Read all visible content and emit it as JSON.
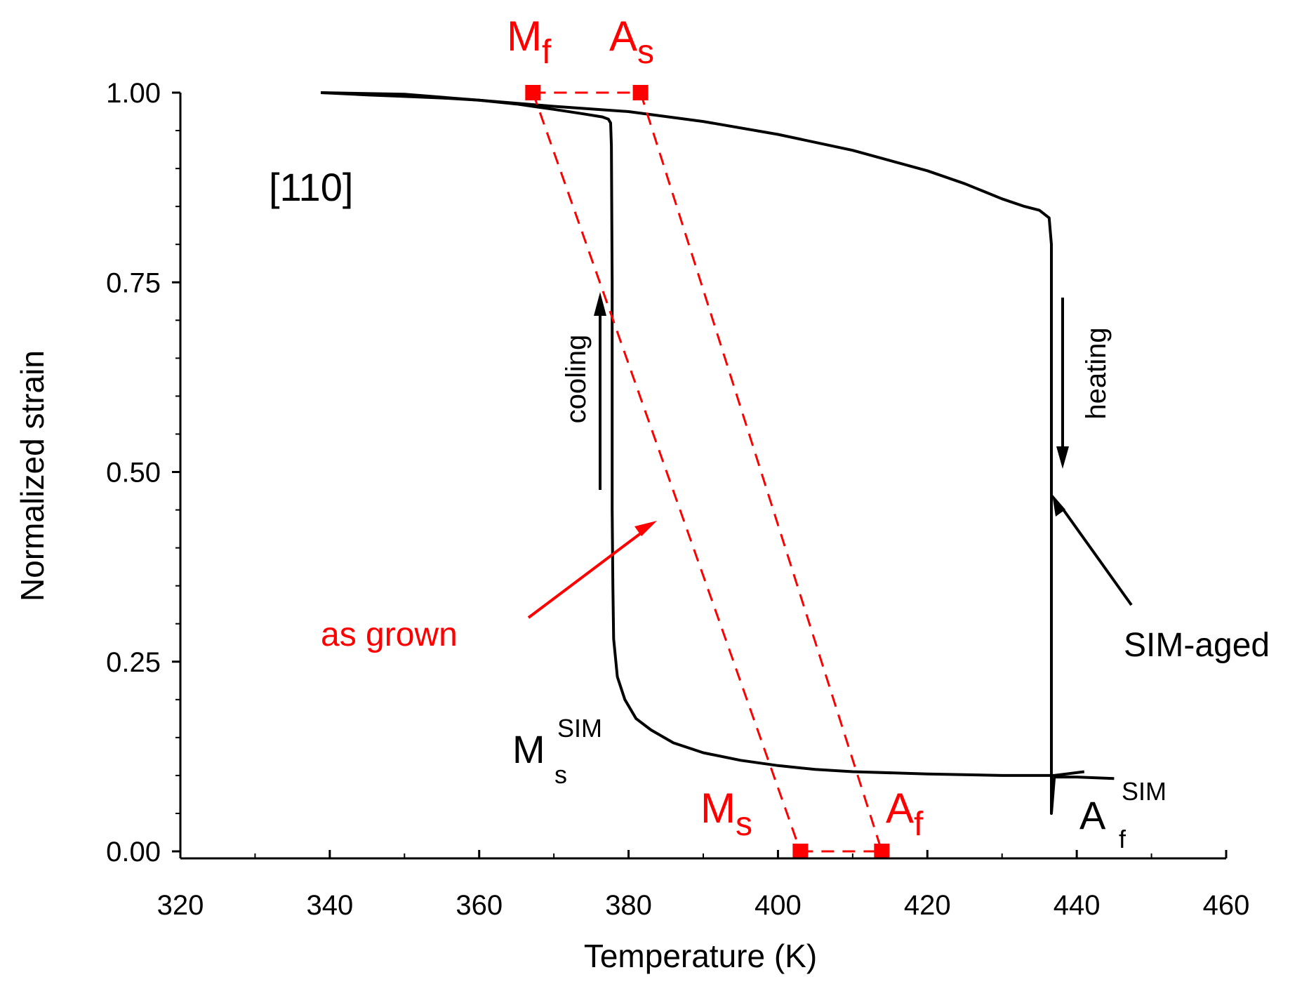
{
  "chart_data": {
    "type": "line",
    "xlabel": "Temperature (K)",
    "ylabel": "Normalized strain",
    "xlim": [
      320,
      460
    ],
    "ylim": [
      0,
      1
    ],
    "x_ticks": [
      "320",
      "340",
      "360",
      "380",
      "400",
      "420",
      "440",
      "460"
    ],
    "y_ticks": [
      "0.00",
      "0.25",
      "0.50",
      "0.75",
      "1.00"
    ],
    "x_tick_values": [
      320,
      340,
      360,
      380,
      400,
      420,
      440,
      460
    ],
    "y_tick_values": [
      0,
      0.25,
      0.5,
      0.75,
      1.0
    ],
    "grid": false,
    "series": [
      {
        "name": "SIM-aged cooling",
        "color": "#000000",
        "style": "solid",
        "x": [
          338.8,
          345,
          350,
          355,
          360,
          365,
          370,
          374,
          376.5,
          377.3,
          377.6,
          377.7,
          377.8,
          377.8,
          377.8,
          377.9,
          378,
          378.5,
          379.5,
          381,
          383,
          386,
          390,
          395,
          400,
          405,
          410,
          420,
          430,
          437,
          441
        ],
        "y": [
          1.0,
          0.997,
          0.995,
          0.993,
          0.99,
          0.985,
          0.978,
          0.972,
          0.968,
          0.965,
          0.96,
          0.93,
          0.75,
          0.6,
          0.45,
          0.35,
          0.28,
          0.23,
          0.2,
          0.175,
          0.16,
          0.143,
          0.13,
          0.12,
          0.113,
          0.108,
          0.105,
          0.102,
          0.1,
          0.1,
          0.105
        ]
      },
      {
        "name": "SIM-aged heating",
        "color": "#000000",
        "style": "solid",
        "x": [
          338.8,
          350,
          360,
          370,
          380,
          390,
          400,
          410,
          420,
          425,
          430,
          433,
          435,
          436.3,
          436.6,
          436.6,
          436.6,
          436.6,
          436.6,
          437,
          440,
          445
        ],
        "y": [
          1.0,
          0.998,
          0.99,
          0.982,
          0.975,
          0.962,
          0.945,
          0.924,
          0.897,
          0.88,
          0.86,
          0.85,
          0.845,
          0.835,
          0.8,
          0.5,
          0.25,
          0.1,
          0.05,
          0.098,
          0.098,
          0.096
        ]
      },
      {
        "name": "as grown cooling",
        "color": "#ff0000",
        "style": "dashed",
        "x": [
          367.2,
          403.0
        ],
        "y": [
          1.0,
          0.0
        ]
      },
      {
        "name": "as grown heating",
        "color": "#ff0000",
        "style": "dashed",
        "x": [
          381.6,
          413.9
        ],
        "y": [
          1.0,
          0.0
        ]
      },
      {
        "name": "as grown Mf-As",
        "color": "#ff0000",
        "style": "dashed",
        "x": [
          367.2,
          381.6
        ],
        "y": [
          1.0,
          1.0
        ]
      },
      {
        "name": "as grown Ms-Af",
        "color": "#ff0000",
        "style": "dashed",
        "x": [
          403.0,
          413.9
        ],
        "y": [
          0.0,
          0.0
        ]
      }
    ],
    "markers": [
      {
        "name": "Mf",
        "x": 367.2,
        "y": 1.0,
        "color": "#ff0000"
      },
      {
        "name": "As",
        "x": 381.6,
        "y": 1.0,
        "color": "#ff0000"
      },
      {
        "name": "Ms",
        "x": 403.0,
        "y": 0.0,
        "color": "#ff0000"
      },
      {
        "name": "Af",
        "x": 413.9,
        "y": 0.0,
        "color": "#ff0000"
      }
    ],
    "annotations": {
      "orientation": "[110]",
      "cooling": "cooling",
      "heating": "heating",
      "as_grown": "as grown",
      "sim_aged": "SIM-aged",
      "Mf_main": "M",
      "Mf_sub": "f",
      "As_main": "A",
      "As_sub": "s",
      "Ms_main": "M",
      "Ms_sub": "s",
      "Af_main": "A",
      "Af_sub": "f",
      "MsSIM_main": "M",
      "MsSIM_sub": "s",
      "MsSIM_sup": "SIM",
      "AfSIM_main": "A",
      "AfSIM_sub": "f",
      "AfSIM_sup": "SIM"
    },
    "colors": {
      "accent": "#ff0000",
      "data": "#000000"
    }
  }
}
